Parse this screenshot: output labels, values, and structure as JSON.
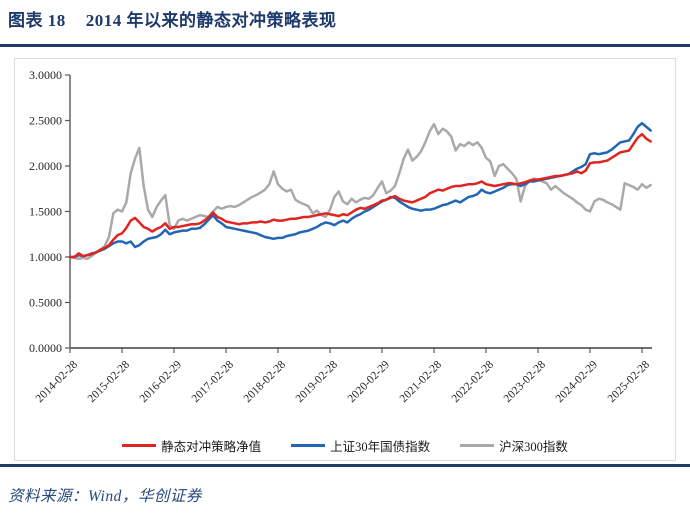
{
  "page": {
    "figure_label": "图表 18",
    "figure_title": "2014 年以来的静态对冲策略表现",
    "source_note": "资料来源：Wind，华创证券"
  },
  "colors": {
    "title_navy": "#1d3a6b",
    "rule_navy": "#1d3a6b",
    "source_blue": "#27497c",
    "axis_gray": "#595959",
    "tick_label": "#262626",
    "chart_border": "#dcdcdc",
    "strategy_red": "#e0241f",
    "treasury_blue": "#2166b4",
    "csi300_gray": "#a9a9a9"
  },
  "chart_data": {
    "type": "line",
    "title": "",
    "xlabel": "",
    "ylabel": "",
    "grid": false,
    "legend_position": "bottom",
    "ylim": [
      0,
      3
    ],
    "y_tick_values": [
      3,
      2.5,
      2,
      1.5,
      1,
      0.5,
      0
    ],
    "y_tick_labels": [
      "3.0000",
      "2.5000",
      "2.0000",
      "1.5000",
      "1.0000",
      "0.5000",
      "0.0000"
    ],
    "x_start_month": "2014-02",
    "x_end_month": "2025-04",
    "x_tick_month_index": [
      0,
      12,
      24,
      36,
      48,
      60,
      72,
      84,
      96,
      108,
      120,
      132
    ],
    "x_tick_labels": [
      "2014-02-28",
      "2015-02-28",
      "2016-02-29",
      "2017-02-28",
      "2018-02-28",
      "2019-02-28",
      "2020-02-29",
      "2021-02-28",
      "2022-02-28",
      "2023-02-28",
      "2024-02-29",
      "2025-02-28"
    ],
    "series": [
      {
        "key": "csi300",
        "name": "沪深300指数",
        "color": "#a9a9a9",
        "values": [
          1.0,
          0.99,
          0.98,
          0.99,
          0.98,
          1.01,
          1.05,
          1.08,
          1.12,
          1.22,
          1.48,
          1.52,
          1.5,
          1.6,
          1.92,
          2.08,
          2.2,
          1.78,
          1.52,
          1.44,
          1.55,
          1.62,
          1.68,
          1.35,
          1.31,
          1.4,
          1.42,
          1.4,
          1.42,
          1.44,
          1.46,
          1.45,
          1.44,
          1.5,
          1.55,
          1.53,
          1.55,
          1.56,
          1.55,
          1.57,
          1.6,
          1.63,
          1.66,
          1.68,
          1.71,
          1.74,
          1.8,
          1.94,
          1.8,
          1.75,
          1.72,
          1.74,
          1.63,
          1.6,
          1.58,
          1.56,
          1.48,
          1.51,
          1.46,
          1.44,
          1.52,
          1.66,
          1.72,
          1.61,
          1.58,
          1.64,
          1.6,
          1.63,
          1.65,
          1.64,
          1.68,
          1.76,
          1.83,
          1.7,
          1.73,
          1.78,
          1.92,
          2.08,
          2.18,
          2.06,
          2.1,
          2.16,
          2.26,
          2.38,
          2.46,
          2.35,
          2.41,
          2.38,
          2.32,
          2.17,
          2.24,
          2.22,
          2.26,
          2.23,
          2.26,
          2.2,
          2.09,
          2.05,
          1.89,
          2.0,
          2.02,
          1.97,
          1.92,
          1.86,
          1.61,
          1.78,
          1.83,
          1.86,
          1.85,
          1.83,
          1.81,
          1.74,
          1.78,
          1.74,
          1.7,
          1.67,
          1.64,
          1.6,
          1.57,
          1.52,
          1.5,
          1.61,
          1.64,
          1.63,
          1.6,
          1.58,
          1.55,
          1.52,
          1.81,
          1.79,
          1.77,
          1.74,
          1.8,
          1.76,
          1.79
        ]
      },
      {
        "key": "treasury30y",
        "name": "上证30年国债指数",
        "color": "#2166b4",
        "values": [
          1.0,
          1.0,
          1.02,
          1.01,
          1.02,
          1.04,
          1.05,
          1.07,
          1.09,
          1.12,
          1.15,
          1.17,
          1.17,
          1.15,
          1.17,
          1.11,
          1.13,
          1.17,
          1.2,
          1.21,
          1.22,
          1.25,
          1.3,
          1.25,
          1.27,
          1.28,
          1.29,
          1.29,
          1.31,
          1.31,
          1.32,
          1.36,
          1.41,
          1.46,
          1.4,
          1.37,
          1.33,
          1.32,
          1.31,
          1.3,
          1.29,
          1.28,
          1.27,
          1.26,
          1.24,
          1.22,
          1.21,
          1.2,
          1.21,
          1.21,
          1.23,
          1.24,
          1.25,
          1.27,
          1.28,
          1.29,
          1.31,
          1.33,
          1.36,
          1.38,
          1.37,
          1.35,
          1.38,
          1.4,
          1.38,
          1.42,
          1.45,
          1.47,
          1.5,
          1.52,
          1.55,
          1.58,
          1.61,
          1.63,
          1.66,
          1.65,
          1.61,
          1.58,
          1.55,
          1.53,
          1.52,
          1.51,
          1.52,
          1.52,
          1.53,
          1.55,
          1.57,
          1.58,
          1.6,
          1.62,
          1.6,
          1.63,
          1.66,
          1.67,
          1.69,
          1.74,
          1.71,
          1.7,
          1.72,
          1.74,
          1.76,
          1.79,
          1.8,
          1.8,
          1.78,
          1.8,
          1.83,
          1.83,
          1.84,
          1.85,
          1.86,
          1.87,
          1.88,
          1.89,
          1.9,
          1.91,
          1.94,
          1.97,
          1.99,
          2.02,
          2.13,
          2.14,
          2.13,
          2.14,
          2.15,
          2.18,
          2.22,
          2.26,
          2.27,
          2.28,
          2.35,
          2.43,
          2.47,
          2.43,
          2.39
        ]
      },
      {
        "key": "strategy",
        "name": "静态对冲策略净值",
        "color": "#e0241f",
        "values": [
          1.0,
          1.0,
          1.04,
          1.01,
          1.02,
          1.03,
          1.05,
          1.08,
          1.1,
          1.13,
          1.19,
          1.24,
          1.26,
          1.32,
          1.4,
          1.43,
          1.38,
          1.33,
          1.31,
          1.28,
          1.31,
          1.33,
          1.37,
          1.31,
          1.33,
          1.33,
          1.34,
          1.35,
          1.36,
          1.36,
          1.37,
          1.4,
          1.44,
          1.49,
          1.44,
          1.42,
          1.39,
          1.38,
          1.37,
          1.36,
          1.37,
          1.37,
          1.38,
          1.38,
          1.39,
          1.38,
          1.39,
          1.41,
          1.4,
          1.4,
          1.41,
          1.42,
          1.42,
          1.43,
          1.44,
          1.44,
          1.45,
          1.46,
          1.47,
          1.48,
          1.47,
          1.46,
          1.45,
          1.47,
          1.46,
          1.49,
          1.52,
          1.54,
          1.53,
          1.55,
          1.57,
          1.59,
          1.62,
          1.63,
          1.65,
          1.67,
          1.64,
          1.62,
          1.61,
          1.6,
          1.62,
          1.64,
          1.66,
          1.7,
          1.72,
          1.74,
          1.73,
          1.75,
          1.77,
          1.78,
          1.78,
          1.79,
          1.8,
          1.8,
          1.81,
          1.83,
          1.8,
          1.79,
          1.78,
          1.79,
          1.8,
          1.81,
          1.81,
          1.8,
          1.81,
          1.82,
          1.84,
          1.85,
          1.85,
          1.86,
          1.87,
          1.88,
          1.89,
          1.89,
          1.9,
          1.91,
          1.92,
          1.94,
          1.92,
          1.95,
          2.03,
          2.04,
          2.04,
          2.05,
          2.06,
          2.09,
          2.12,
          2.15,
          2.16,
          2.17,
          2.24,
          2.31,
          2.35,
          2.3,
          2.27
        ]
      }
    ],
    "legend_order": [
      "strategy",
      "treasury30y",
      "csi300"
    ]
  }
}
